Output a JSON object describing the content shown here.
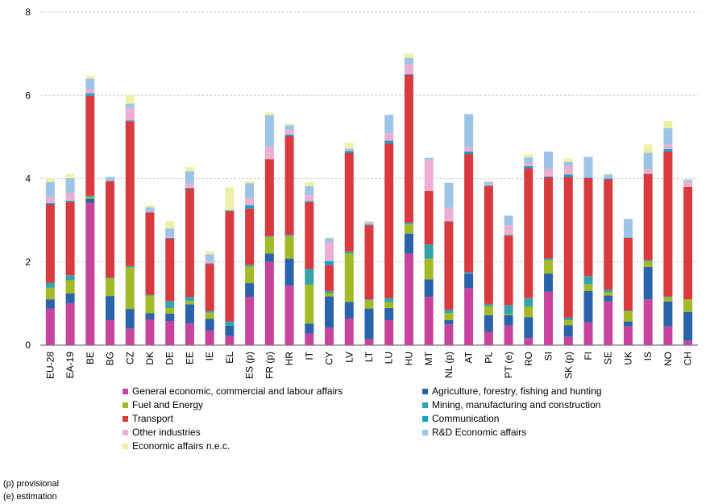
{
  "chart_data": {
    "type": "bar",
    "stacked": true,
    "ylim": [
      0,
      8
    ],
    "yticks": [
      0,
      2,
      4,
      6,
      8
    ],
    "grid": true,
    "legend_position": "bottom",
    "categories": [
      "EU-28",
      "EA-19",
      "BE",
      "BG",
      "CZ",
      "DK",
      "DE",
      "EE",
      "IE",
      "EL",
      "ES (p)",
      "FR (p)",
      "HR",
      "IT",
      "CY",
      "LV",
      "LT",
      "LU",
      "HU",
      "MT",
      "NL (p)",
      "AT",
      "PL",
      "PT (e)",
      "RO",
      "SI",
      "SK (p)",
      "FI",
      "SE",
      "UK",
      "IS",
      "NO",
      "CH"
    ],
    "series": [
      {
        "name": "General economic, commercial and labour affairs",
        "color": "#c6449c",
        "values": [
          0.88,
          1.0,
          3.42,
          0.6,
          0.4,
          0.62,
          0.58,
          0.52,
          0.35,
          0.22,
          1.16,
          2.0,
          1.43,
          0.28,
          0.42,
          0.64,
          0.14,
          0.6,
          2.2,
          1.16,
          0.5,
          1.37,
          0.32,
          0.47,
          0.17,
          1.28,
          0.2,
          0.55,
          1.05,
          0.45,
          1.1,
          0.45,
          0.1
        ]
      },
      {
        "name": "Agriculture, forestry, fishing and hunting",
        "color": "#2a63a9",
        "values": [
          0.22,
          0.24,
          0.1,
          0.58,
          0.47,
          0.15,
          0.18,
          0.46,
          0.28,
          0.25,
          0.33,
          0.2,
          0.65,
          0.24,
          0.75,
          0.4,
          0.74,
          0.29,
          0.48,
          0.42,
          0.1,
          0.35,
          0.4,
          0.25,
          0.5,
          0.44,
          0.28,
          0.75,
          0.14,
          0.12,
          0.78,
          0.6,
          0.7
        ]
      },
      {
        "name": "Fuel and Energy",
        "color": "#a4b928",
        "values": [
          0.28,
          0.32,
          0.04,
          0.42,
          1.0,
          0.42,
          0.13,
          0.08,
          0.15,
          0.0,
          0.4,
          0.4,
          0.54,
          0.93,
          0.08,
          1.16,
          0.2,
          0.14,
          0.22,
          0.5,
          0.17,
          0.0,
          0.22,
          0.02,
          0.26,
          0.32,
          0.12,
          0.16,
          0.08,
          0.24,
          0.13,
          0.1,
          0.3
        ]
      },
      {
        "name": "Mining, manufacturing and construction",
        "color": "#35a3a9",
        "values": [
          0.12,
          0.12,
          0.03,
          0.02,
          0.03,
          0.02,
          0.17,
          0.1,
          0.04,
          0.1,
          0.04,
          0.02,
          0.03,
          0.38,
          0.05,
          0.05,
          0.02,
          0.1,
          0.04,
          0.34,
          0.08,
          0.03,
          0.05,
          0.22,
          0.2,
          0.04,
          0.06,
          0.2,
          0.06,
          0.02,
          0.03,
          0.02,
          0.0
        ]
      },
      {
        "name": "Transport",
        "color": "#d93a3f",
        "values": [
          1.88,
          1.76,
          2.4,
          2.32,
          3.48,
          1.98,
          1.5,
          2.6,
          1.13,
          2.65,
          1.35,
          1.85,
          2.37,
          1.6,
          0.62,
          2.37,
          1.78,
          3.72,
          3.55,
          1.28,
          2.12,
          2.84,
          2.83,
          1.67,
          3.12,
          1.95,
          3.38,
          2.35,
          2.65,
          1.75,
          2.07,
          3.48,
          2.7
        ]
      },
      {
        "name": "Communication",
        "color": "#14a0c8",
        "values": [
          0.03,
          0.03,
          0.06,
          0.0,
          0.02,
          0.0,
          0.02,
          0.02,
          0.02,
          0.02,
          0.08,
          0.0,
          0.04,
          0.03,
          0.1,
          0.04,
          0.02,
          0.06,
          0.02,
          0.0,
          0.01,
          0.06,
          0.02,
          0.02,
          0.05,
          0.02,
          0.06,
          0.01,
          0.02,
          0.01,
          0.01,
          0.06,
          0.0
        ]
      },
      {
        "name": "Other industries",
        "color": "#ecaed2",
        "values": [
          0.15,
          0.19,
          0.1,
          0.0,
          0.3,
          0.0,
          0.02,
          0.1,
          0.05,
          0.0,
          0.17,
          0.3,
          0.12,
          0.14,
          0.45,
          0.0,
          0.03,
          0.18,
          0.24,
          0.75,
          0.32,
          0.1,
          0.03,
          0.23,
          0.07,
          0.18,
          0.2,
          0.0,
          0.0,
          0.0,
          0.12,
          0.1,
          0.12
        ]
      },
      {
        "name": "R&D Economic affairs",
        "color": "#9dc3e6",
        "values": [
          0.36,
          0.35,
          0.25,
          0.1,
          0.1,
          0.12,
          0.2,
          0.3,
          0.16,
          0.0,
          0.36,
          0.75,
          0.1,
          0.22,
          0.1,
          0.06,
          0.03,
          0.44,
          0.15,
          0.05,
          0.6,
          0.8,
          0.05,
          0.23,
          0.14,
          0.42,
          0.1,
          0.5,
          0.1,
          0.44,
          0.38,
          0.4,
          0.05
        ]
      },
      {
        "name": "Economic affairs n.e.c.",
        "color": "#edf1a6",
        "values": [
          0.08,
          0.1,
          0.07,
          0.0,
          0.2,
          0.05,
          0.18,
          0.1,
          0.08,
          0.55,
          0.05,
          0.07,
          0.04,
          0.1,
          0.02,
          0.14,
          0.02,
          0.0,
          0.1,
          0.0,
          0.0,
          0.0,
          0.02,
          0.0,
          0.08,
          0.0,
          0.08,
          0.0,
          0.02,
          0.0,
          0.2,
          0.18,
          0.02
        ]
      }
    ]
  },
  "footnotes": [
    "(p) provisional",
    "(e) estimation"
  ]
}
